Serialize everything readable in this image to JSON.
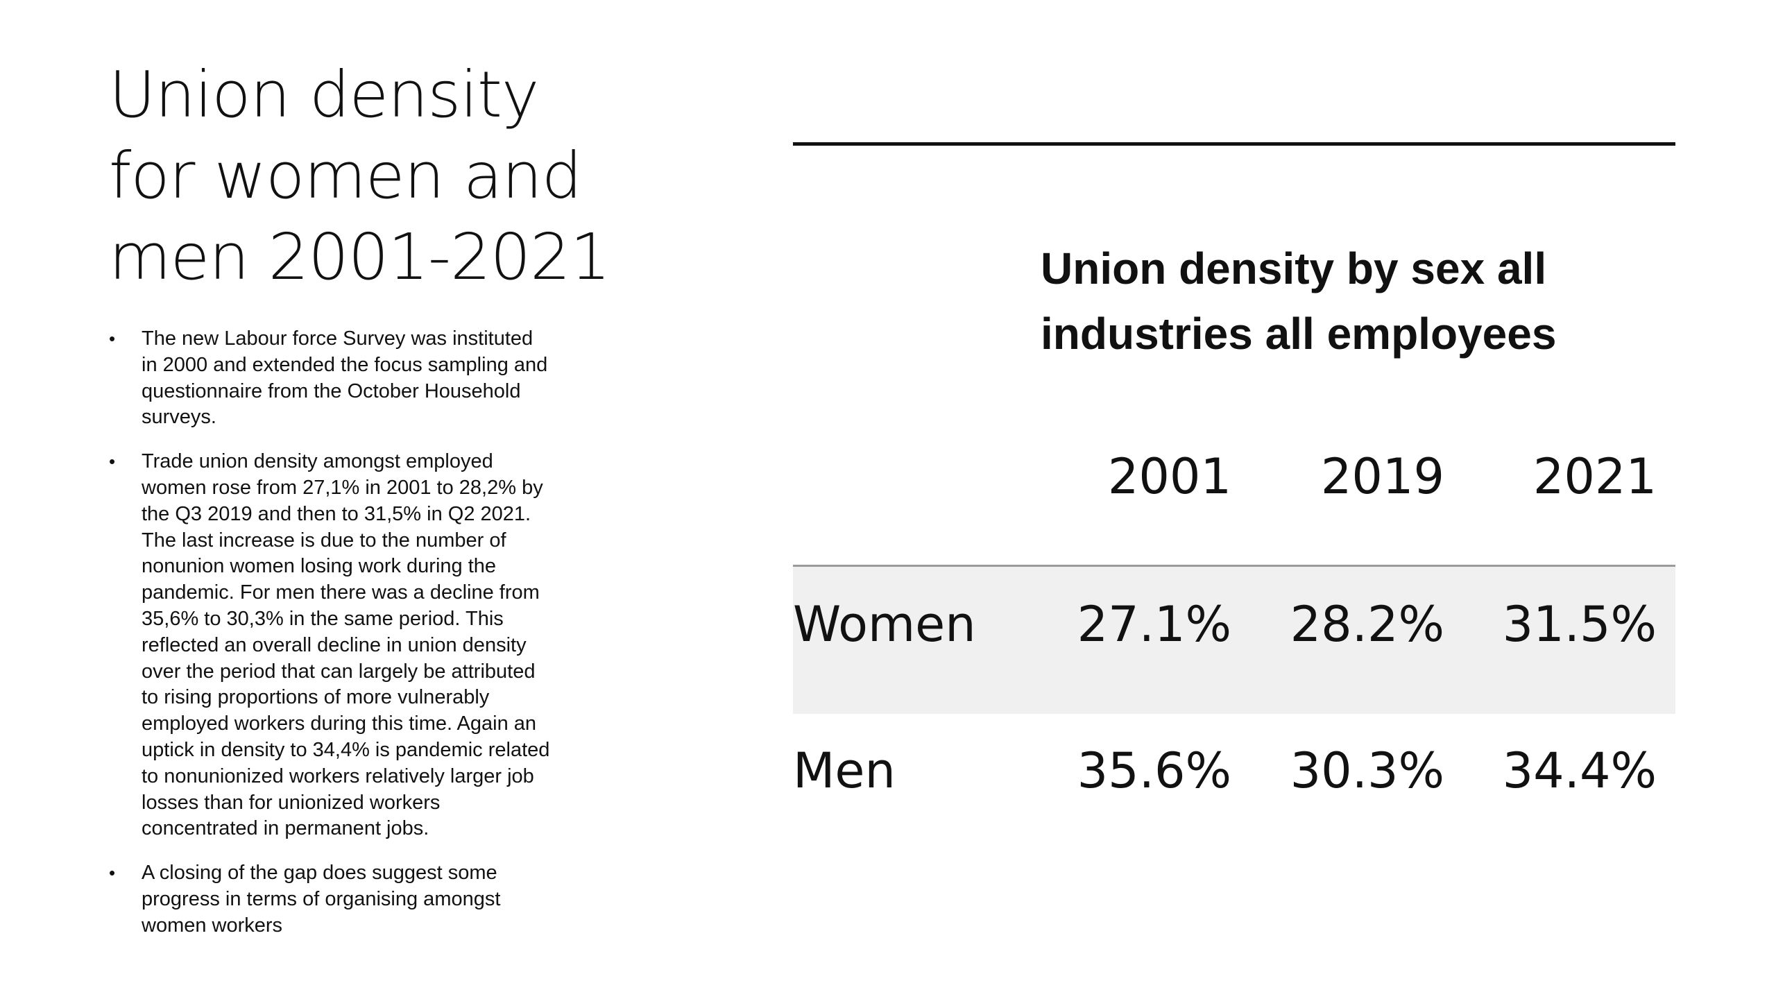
{
  "slide": {
    "title_lines": [
      "Union density",
      "for women and",
      "men 2001-2021"
    ],
    "bullets": [
      [
        "The new Labour force Survey was instituted",
        "in 2000 and extended the focus sampling and",
        "questionnaire from the October Household",
        "surveys."
      ],
      [
        "Trade union density amongst employed",
        "women rose from 27,1% in 2001 to 28,2% by",
        "the Q3 2019 and then to 31,5% in Q2 2021.",
        "The last increase is due to the number of",
        "nonunion women losing work during the",
        "pandemic.  For men there was a decline from",
        "35,6% to 30,3% in the same period. This",
        "reflected an overall decline in union density",
        "over the period that can largely be attributed",
        "to rising proportions of more vulnerably",
        "employed workers during this time. Again an",
        "uptick in density to 34,4% is pandemic related",
        "to nonunionized workers relatively larger job",
        "losses than for unionized workers",
        "concentrated in permanent jobs."
      ],
      [
        "A closing of the gap does suggest some",
        "progress in terms of organising amongst",
        "women workers"
      ]
    ],
    "bullet_symbol": "•"
  },
  "chart_data": {
    "type": "table",
    "title_lines": [
      "Union density by sex all",
      "industries all employees"
    ],
    "columns": [
      "2001",
      "2019",
      "2021"
    ],
    "rows": [
      {
        "label": "Women",
        "values": [
          "27.1%",
          "28.2%",
          "31.5%"
        ]
      },
      {
        "label": "Men",
        "values": [
          "35.6%",
          "30.3%",
          "34.4%"
        ]
      }
    ],
    "row_highlight_color": "#f0f0f0",
    "rule_color": "#111111"
  }
}
